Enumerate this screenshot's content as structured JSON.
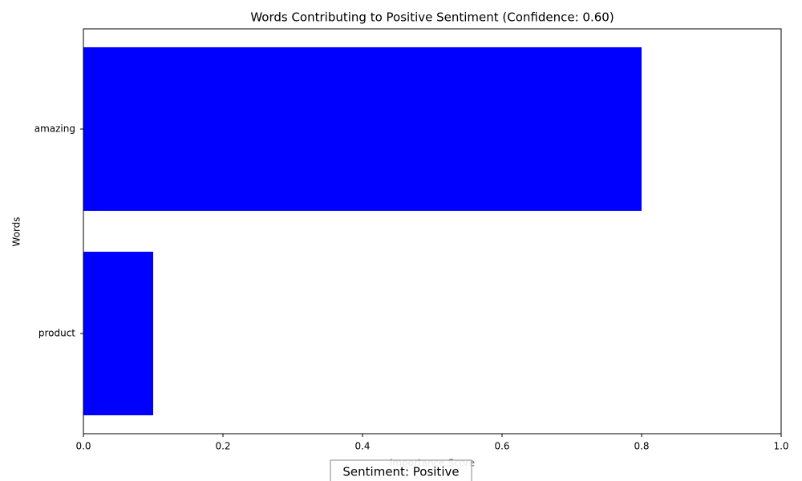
{
  "chart_data": {
    "type": "barh",
    "title": "Words Contributing to Positive Sentiment (Confidence: 0.60)",
    "x_label": "Importance Score",
    "y_label": "Words",
    "annotation": "Sentiment: Positive",
    "categories": [
      "product",
      "amazing"
    ],
    "values": [
      0.1,
      0.8
    ],
    "color": "blue",
    "xlim": [
      0,
      1
    ],
    "xticks": [
      {
        "value": 0,
        "label": "0.0"
      },
      0.2,
      0.4,
      0.6,
      0.8,
      {
        "value": 1,
        "label": "1.0"
      }
    ],
    "grid": false
  }
}
